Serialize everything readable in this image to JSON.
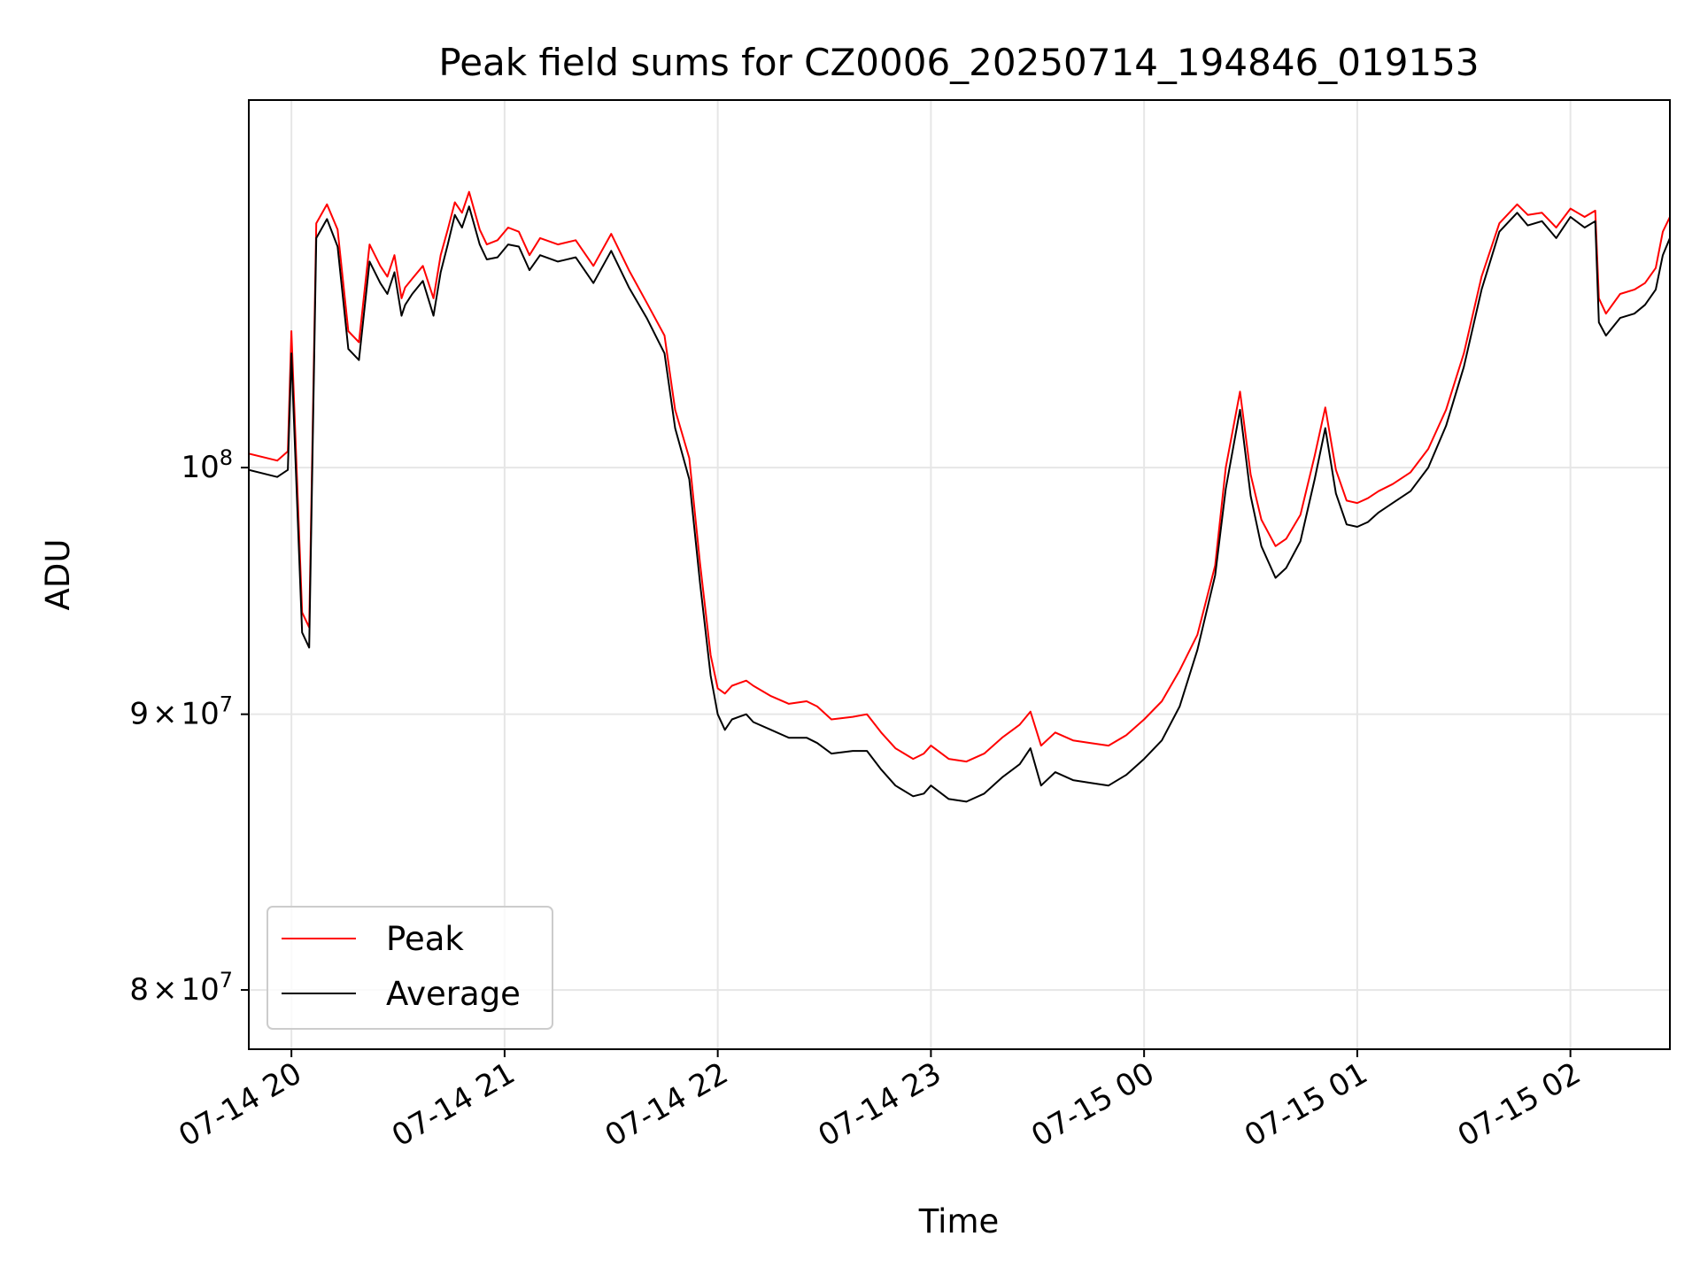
{
  "chart_data": {
    "type": "line",
    "title": "Peak field sums for CZ0006_20250714_194846_019153",
    "xlabel": "Time",
    "ylabel": "ADU",
    "yscale": "log",
    "ylim": [
      78000000,
      117000000
    ],
    "xlim": [
      "2025-07-14 19:48",
      "2025-07-15 02:28"
    ],
    "grid": true,
    "legend_position": "lower-left",
    "x_ticks": [
      "2025-07-14 20:00",
      "2025-07-14 21:00",
      "2025-07-14 22:00",
      "2025-07-14 23:00",
      "2025-07-15 00:00",
      "2025-07-15 01:00",
      "2025-07-15 02:00"
    ],
    "x_tick_labels": [
      "07-14 20",
      "07-14 21",
      "07-14 22",
      "07-14 23",
      "07-15 00",
      "07-15 01",
      "07-15 02"
    ],
    "y_ticks": [
      80000000,
      90000000,
      100000000
    ],
    "y_tick_labels": [
      {
        "mantissa": "8",
        "times": "×",
        "base": "10",
        "exp": "7"
      },
      {
        "mantissa": "9",
        "times": "×",
        "base": "10",
        "exp": "7"
      },
      {
        "mantissa": "",
        "times": "",
        "base": "10",
        "exp": "8"
      }
    ],
    "series": [
      {
        "name": "Peak",
        "color": "#ff0000",
        "x": [
          "2025-07-14 19:48",
          "2025-07-14 19:56",
          "2025-07-14 19:59",
          "2025-07-14 20:00",
          "2025-07-14 20:03",
          "2025-07-14 20:05",
          "2025-07-14 20:07",
          "2025-07-14 20:10",
          "2025-07-14 20:13",
          "2025-07-14 20:16",
          "2025-07-14 20:19",
          "2025-07-14 20:22",
          "2025-07-14 20:25",
          "2025-07-14 20:27",
          "2025-07-14 20:29",
          "2025-07-14 20:31",
          "2025-07-14 20:32",
          "2025-07-14 20:34",
          "2025-07-14 20:37",
          "2025-07-14 20:40",
          "2025-07-14 20:42",
          "2025-07-14 20:44",
          "2025-07-14 20:46",
          "2025-07-14 20:48",
          "2025-07-14 20:50",
          "2025-07-14 20:53",
          "2025-07-14 20:55",
          "2025-07-14 20:58",
          "2025-07-14 21:01",
          "2025-07-14 21:04",
          "2025-07-14 21:07",
          "2025-07-14 21:10",
          "2025-07-14 21:15",
          "2025-07-14 21:20",
          "2025-07-14 21:25",
          "2025-07-14 21:30",
          "2025-07-14 21:35",
          "2025-07-14 21:40",
          "2025-07-14 21:45",
          "2025-07-14 21:48",
          "2025-07-14 21:52",
          "2025-07-14 21:55",
          "2025-07-14 21:58",
          "2025-07-14 22:00",
          "2025-07-14 22:02",
          "2025-07-14 22:04",
          "2025-07-14 22:06",
          "2025-07-14 22:08",
          "2025-07-14 22:10",
          "2025-07-14 22:15",
          "2025-07-14 22:20",
          "2025-07-14 22:25",
          "2025-07-14 22:28",
          "2025-07-14 22:32",
          "2025-07-14 22:38",
          "2025-07-14 22:42",
          "2025-07-14 22:46",
          "2025-07-14 22:50",
          "2025-07-14 22:55",
          "2025-07-14 22:58",
          "2025-07-14 23:00",
          "2025-07-14 23:05",
          "2025-07-14 23:10",
          "2025-07-14 23:15",
          "2025-07-14 23:20",
          "2025-07-14 23:25",
          "2025-07-14 23:28",
          "2025-07-14 23:31",
          "2025-07-14 23:35",
          "2025-07-14 23:40",
          "2025-07-14 23:45",
          "2025-07-14 23:50",
          "2025-07-14 23:55",
          "2025-07-15 00:00",
          "2025-07-15 00:05",
          "2025-07-15 00:10",
          "2025-07-15 00:15",
          "2025-07-15 00:20",
          "2025-07-15 00:23",
          "2025-07-15 00:27",
          "2025-07-15 00:30",
          "2025-07-15 00:33",
          "2025-07-15 00:37",
          "2025-07-15 00:40",
          "2025-07-15 00:44",
          "2025-07-15 00:48",
          "2025-07-15 00:51",
          "2025-07-15 00:54",
          "2025-07-15 00:57",
          "2025-07-15 01:00",
          "2025-07-15 01:03",
          "2025-07-15 01:06",
          "2025-07-15 01:10",
          "2025-07-15 01:15",
          "2025-07-15 01:20",
          "2025-07-15 01:25",
          "2025-07-15 01:30",
          "2025-07-15 01:35",
          "2025-07-15 01:40",
          "2025-07-15 01:45",
          "2025-07-15 01:48",
          "2025-07-15 01:52",
          "2025-07-15 01:56",
          "2025-07-15 02:00",
          "2025-07-15 02:04",
          "2025-07-15 02:07",
          "2025-07-15 02:08",
          "2025-07-15 02:10",
          "2025-07-15 02:14",
          "2025-07-15 02:18",
          "2025-07-15 02:21",
          "2025-07-15 02:24",
          "2025-07-15 02:26",
          "2025-07-15 02:28"
        ],
        "values": [
          100600000,
          100300000,
          100700000,
          106000000,
          94000000,
          93400000,
          111000000,
          111900000,
          110700000,
          106000000,
          105500000,
          110000000,
          109000000,
          108500000,
          109500000,
          107500000,
          108000000,
          108400000,
          109000000,
          107500000,
          109500000,
          110700000,
          112000000,
          111500000,
          112500000,
          110700000,
          110000000,
          110200000,
          110800000,
          110600000,
          109500000,
          110300000,
          110000000,
          110200000,
          109000000,
          110500000,
          108800000,
          107300000,
          105800000,
          102500000,
          100400000,
          96000000,
          92300000,
          91000000,
          90800000,
          91100000,
          91200000,
          91300000,
          91100000,
          90700000,
          90400000,
          90500000,
          90300000,
          89800000,
          89900000,
          90000000,
          89300000,
          88700000,
          88300000,
          88500000,
          88800000,
          88300000,
          88200000,
          88500000,
          89100000,
          89600000,
          90100000,
          88800000,
          89300000,
          89000000,
          88900000,
          88800000,
          89200000,
          89800000,
          90500000,
          91700000,
          93100000,
          95900000,
          100000000,
          103300000,
          99700000,
          97800000,
          96700000,
          97000000,
          98000000,
          100500000,
          102600000,
          99900000,
          98600000,
          98500000,
          98700000,
          99000000,
          99300000,
          99800000,
          100800000,
          102500000,
          105000000,
          108500000,
          111000000,
          111900000,
          111400000,
          111500000,
          110800000,
          111700000,
          111300000,
          111600000,
          107500000,
          106800000,
          107700000,
          107900000,
          108200000,
          108900000,
          110600000,
          111300000
        ]
      },
      {
        "name": "Average",
        "color": "#000000",
        "x": [
          "2025-07-14 19:48",
          "2025-07-14 19:56",
          "2025-07-14 19:59",
          "2025-07-14 20:00",
          "2025-07-14 20:03",
          "2025-07-14 20:05",
          "2025-07-14 20:07",
          "2025-07-14 20:10",
          "2025-07-14 20:13",
          "2025-07-14 20:16",
          "2025-07-14 20:19",
          "2025-07-14 20:22",
          "2025-07-14 20:25",
          "2025-07-14 20:27",
          "2025-07-14 20:29",
          "2025-07-14 20:31",
          "2025-07-14 20:32",
          "2025-07-14 20:34",
          "2025-07-14 20:37",
          "2025-07-14 20:40",
          "2025-07-14 20:42",
          "2025-07-14 20:44",
          "2025-07-14 20:46",
          "2025-07-14 20:48",
          "2025-07-14 20:50",
          "2025-07-14 20:53",
          "2025-07-14 20:55",
          "2025-07-14 20:58",
          "2025-07-14 21:01",
          "2025-07-14 21:04",
          "2025-07-14 21:07",
          "2025-07-14 21:10",
          "2025-07-14 21:15",
          "2025-07-14 21:20",
          "2025-07-14 21:25",
          "2025-07-14 21:30",
          "2025-07-14 21:35",
          "2025-07-14 21:40",
          "2025-07-14 21:45",
          "2025-07-14 21:48",
          "2025-07-14 21:52",
          "2025-07-14 21:55",
          "2025-07-14 21:58",
          "2025-07-14 22:00",
          "2025-07-14 22:02",
          "2025-07-14 22:04",
          "2025-07-14 22:06",
          "2025-07-14 22:08",
          "2025-07-14 22:10",
          "2025-07-14 22:15",
          "2025-07-14 22:20",
          "2025-07-14 22:25",
          "2025-07-14 22:28",
          "2025-07-14 22:32",
          "2025-07-14 22:38",
          "2025-07-14 22:42",
          "2025-07-14 22:46",
          "2025-07-14 22:50",
          "2025-07-14 22:55",
          "2025-07-14 22:58",
          "2025-07-14 23:00",
          "2025-07-14 23:05",
          "2025-07-14 23:10",
          "2025-07-14 23:15",
          "2025-07-14 23:20",
          "2025-07-14 23:25",
          "2025-07-14 23:28",
          "2025-07-14 23:31",
          "2025-07-14 23:35",
          "2025-07-14 23:40",
          "2025-07-14 23:45",
          "2025-07-14 23:50",
          "2025-07-14 23:55",
          "2025-07-15 00:00",
          "2025-07-15 00:05",
          "2025-07-15 00:10",
          "2025-07-15 00:15",
          "2025-07-15 00:20",
          "2025-07-15 00:23",
          "2025-07-15 00:27",
          "2025-07-15 00:30",
          "2025-07-15 00:33",
          "2025-07-15 00:37",
          "2025-07-15 00:40",
          "2025-07-15 00:44",
          "2025-07-15 00:48",
          "2025-07-15 00:51",
          "2025-07-15 00:54",
          "2025-07-15 00:57",
          "2025-07-15 01:00",
          "2025-07-15 01:03",
          "2025-07-15 01:06",
          "2025-07-15 01:10",
          "2025-07-15 01:15",
          "2025-07-15 01:20",
          "2025-07-15 01:25",
          "2025-07-15 01:30",
          "2025-07-15 01:35",
          "2025-07-15 01:40",
          "2025-07-15 01:45",
          "2025-07-15 01:48",
          "2025-07-15 01:52",
          "2025-07-15 01:56",
          "2025-07-15 02:00",
          "2025-07-15 02:04",
          "2025-07-15 02:07",
          "2025-07-15 02:08",
          "2025-07-15 02:10",
          "2025-07-15 02:14",
          "2025-07-15 02:18",
          "2025-07-15 02:21",
          "2025-07-15 02:24",
          "2025-07-15 02:26",
          "2025-07-15 02:28"
        ],
        "values": [
          99900000,
          99600000,
          99900000,
          105000000,
          93200000,
          92600000,
          110300000,
          111200000,
          109900000,
          105200000,
          104700000,
          109200000,
          108200000,
          107700000,
          108700000,
          106700000,
          107200000,
          107700000,
          108300000,
          106700000,
          108700000,
          110000000,
          111400000,
          110800000,
          111800000,
          110000000,
          109300000,
          109400000,
          110000000,
          109900000,
          108800000,
          109500000,
          109200000,
          109400000,
          108200000,
          109700000,
          108000000,
          106600000,
          105000000,
          101700000,
          99500000,
          95200000,
          91500000,
          90000000,
          89400000,
          89800000,
          89900000,
          90000000,
          89700000,
          89400000,
          89100000,
          89100000,
          88900000,
          88500000,
          88600000,
          88600000,
          87900000,
          87300000,
          86900000,
          87000000,
          87300000,
          86800000,
          86700000,
          87000000,
          87600000,
          88100000,
          88700000,
          87300000,
          87800000,
          87500000,
          87400000,
          87300000,
          87700000,
          88300000,
          89000000,
          90300000,
          92500000,
          95500000,
          99100000,
          102500000,
          98800000,
          96700000,
          95400000,
          95800000,
          96900000,
          99500000,
          101700000,
          98900000,
          97600000,
          97500000,
          97700000,
          98100000,
          98500000,
          99000000,
          100000000,
          101800000,
          104400000,
          107900000,
          110600000,
          111500000,
          110900000,
          111100000,
          110300000,
          111300000,
          110800000,
          111100000,
          106400000,
          105800000,
          106600000,
          106800000,
          107200000,
          107900000,
          109500000,
          110300000
        ]
      }
    ]
  }
}
